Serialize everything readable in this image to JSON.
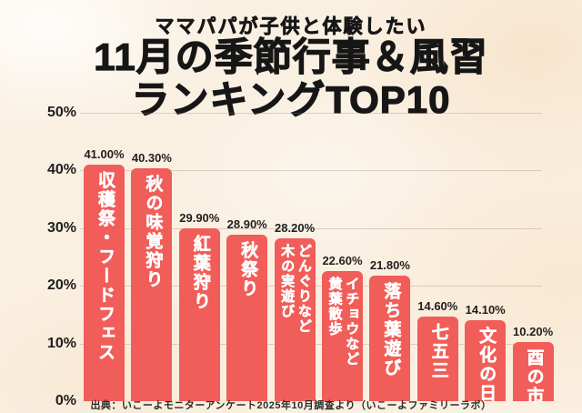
{
  "title": {
    "line1": "ママパパが子供と体験したい",
    "line2": "11月の季節行事＆風習",
    "line3": "ランキングTOP10"
  },
  "footer": {
    "source": "出典：いこーよモニターアンケート2025年10月調査より（いこーよファミリーラボ）"
  },
  "colors": {
    "bar": "#F15D58",
    "background": "#FAF0E2",
    "grid": "#C9BFA9",
    "title_text": "#161616",
    "bar_label_text": "#FFFFFF",
    "value_label_text": "#1F1F1F"
  },
  "chart_data": {
    "type": "bar",
    "title": "ママパパが子供と体験したい 11月の季節行事＆風習ランキングTOP10",
    "categories": [
      "収穫祭・フードフェス",
      "秋の味覚狩り",
      "紅葉狩り",
      "秋祭り",
      "どんぐりなど木の実遊び",
      "イチョウなど黄葉散歩",
      "落ち葉遊び",
      "七五三",
      "文化の日",
      "酉の市"
    ],
    "category_lines": [
      [
        "収穫祭・フードフェス"
      ],
      [
        "秋の味覚狩り"
      ],
      [
        "紅葉狩り"
      ],
      [
        "秋祭り"
      ],
      [
        "どんぐりなど",
        "木の実遊び"
      ],
      [
        "イチョウなど",
        "黄葉散歩"
      ],
      [
        "落ち葉遊び"
      ],
      [
        "七五三"
      ],
      [
        "文化の日"
      ],
      [
        "酉の市"
      ]
    ],
    "values": [
      41.0,
      40.3,
      29.9,
      28.9,
      28.2,
      22.6,
      21.8,
      14.6,
      14.1,
      10.2
    ],
    "value_labels": [
      "41.00%",
      "40.30%",
      "29.90%",
      "28.90%",
      "28.20%",
      "22.60%",
      "21.80%",
      "14.60%",
      "14.10%",
      "10.20%"
    ],
    "xlabel": "",
    "ylabel": "",
    "ylim": [
      0,
      50
    ],
    "yticks": [
      0,
      10,
      20,
      30,
      40,
      50
    ],
    "ytick_labels": [
      "0%",
      "10%",
      "20%",
      "30%",
      "40%",
      "50%"
    ],
    "grid": true,
    "legend": false,
    "bar_color": "#F15D58"
  }
}
